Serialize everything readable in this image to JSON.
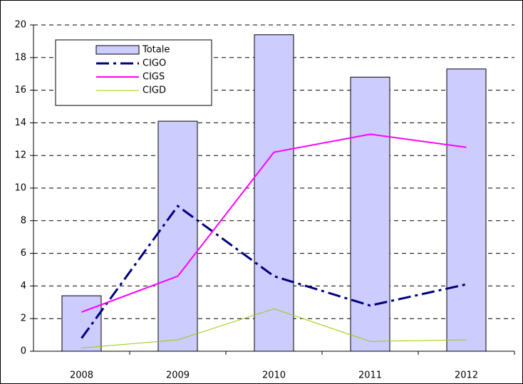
{
  "chart_data": {
    "type": "bar",
    "categories": [
      "2008",
      "2009",
      "2010",
      "2011",
      "2012"
    ],
    "series": [
      {
        "name": "Totale",
        "type": "bar",
        "color": "#ccccff",
        "values": [
          3.4,
          14.1,
          19.4,
          16.8,
          17.3
        ]
      },
      {
        "name": "CIGO",
        "type": "line",
        "color": "#000080",
        "values": [
          0.8,
          8.9,
          4.6,
          2.8,
          4.1
        ]
      },
      {
        "name": "CIGS",
        "type": "line",
        "color": "#ff00ff",
        "values": [
          2.4,
          4.6,
          12.2,
          13.3,
          12.5
        ]
      },
      {
        "name": "CIGD",
        "type": "line",
        "color": "#99cc00",
        "values": [
          0.2,
          0.7,
          2.6,
          0.6,
          0.7
        ]
      }
    ],
    "ylim": [
      0,
      20
    ],
    "yticks": [
      0,
      2,
      4,
      6,
      8,
      10,
      12,
      14,
      16,
      18,
      20
    ],
    "grid": true,
    "legend": "upper left"
  }
}
